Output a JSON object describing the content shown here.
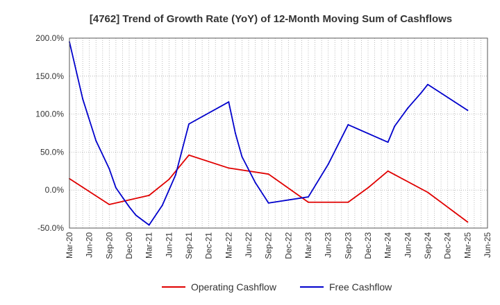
{
  "chart_data": {
    "type": "line",
    "title": "[4762]  Trend of Growth Rate (YoY) of 12-Month Moving Sum of Cashflows",
    "xlabel": "",
    "ylabel": "",
    "x_ticks": [
      "Mar-20",
      "Jun-20",
      "Sep-20",
      "Dec-20",
      "Mar-21",
      "Jun-21",
      "Sep-21",
      "Dec-21",
      "Mar-22",
      "Jun-22",
      "Sep-22",
      "Dec-22",
      "Mar-23",
      "Jun-23",
      "Sep-23",
      "Dec-23",
      "Mar-24",
      "Jun-24",
      "Sep-24",
      "Dec-24",
      "Mar-25",
      "Jun-25"
    ],
    "y_ticks": [
      "200.0%",
      "150.0%",
      "100.0%",
      "50.0%",
      "0.0%",
      "-50.0%"
    ],
    "y_tick_values": [
      200,
      150,
      100,
      50,
      0,
      -50
    ],
    "ylim": [
      -50,
      200
    ],
    "grid": true,
    "legend_position": "bottom",
    "series": [
      {
        "name": "Operating Cashflow",
        "color": "#e00000",
        "x": [
          "Mar-20",
          "Sep-20",
          "Mar-21",
          "Jun-21",
          "Sep-21",
          "Mar-22",
          "Sep-22",
          "Mar-23",
          "Sep-23",
          "Dec-23",
          "Mar-24",
          "Sep-24",
          "Mar-25"
        ],
        "values": [
          15,
          -19,
          -7,
          14,
          46,
          29,
          21,
          -16,
          -16,
          3,
          25,
          -3,
          -42
        ]
      },
      {
        "name": "Free Cashflow",
        "color": "#0000cc",
        "x": [
          "Mar-20",
          "May-20",
          "Jul-20",
          "Sep-20",
          "Oct-20",
          "Dec-20",
          "Jan-21",
          "Mar-21",
          "May-21",
          "Jul-21",
          "Sep-21",
          "Mar-22",
          "Apr-22",
          "May-22",
          "Jul-22",
          "Sep-22",
          "Mar-23",
          "Jun-23",
          "Sep-23",
          "Mar-24",
          "Apr-24",
          "Jun-24",
          "Aug-24",
          "Sep-24",
          "Mar-25"
        ],
        "values": [
          195,
          120,
          65,
          28,
          3,
          -22,
          -33,
          -46,
          -20,
          20,
          87,
          116,
          75,
          44,
          10,
          -17,
          -9,
          34,
          86,
          63,
          84,
          108,
          128,
          139,
          105
        ]
      }
    ]
  }
}
